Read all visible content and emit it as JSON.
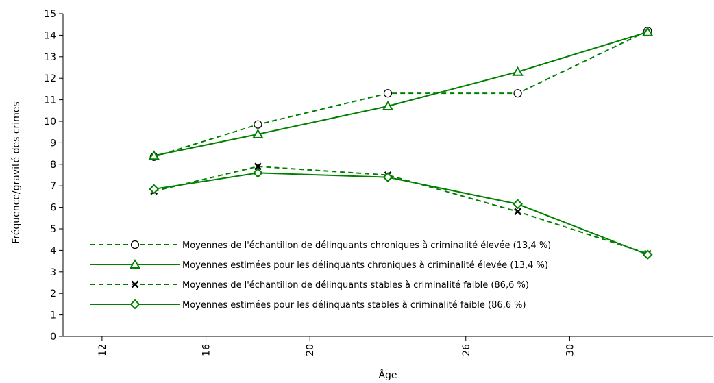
{
  "chart_data": {
    "type": "line",
    "title": "",
    "xlabel": "Âge",
    "ylabel": "Fréquence/gravité des crimes",
    "xlim": [
      10.5,
      35.5
    ],
    "ylim": [
      0,
      15
    ],
    "x_ticks": [
      12,
      16,
      20,
      26,
      30
    ],
    "x_tick_labels": [
      "12",
      "16",
      "20",
      "26",
      "30"
    ],
    "x_positions": [
      14,
      18,
      23,
      28,
      33
    ],
    "y_ticks": [
      0,
      1,
      2,
      3,
      4,
      5,
      6,
      7,
      8,
      9,
      10,
      11,
      12,
      13,
      14,
      15
    ],
    "y_tick_labels": [
      "0",
      "1",
      "2",
      "3",
      "4",
      "5",
      "6",
      "7",
      "8",
      "9",
      "10",
      "11",
      "12",
      "13",
      "14",
      "15"
    ],
    "grid": false,
    "legend_position": "lower-left",
    "color": "#008000",
    "series": [
      {
        "name": "Moyennes de l'échantillon de délinquants chroniques à criminalité élevée (13,4 %)",
        "dash": "dashed",
        "marker": "circle",
        "values": [
          8.35,
          9.85,
          11.3,
          11.3,
          14.2
        ]
      },
      {
        "name": "Moyennes estimées pour les délinquants chroniques à criminalité élevée (13,4 %)",
        "dash": "solid",
        "marker": "triangle",
        "values": [
          8.4,
          9.4,
          10.7,
          12.3,
          14.15
        ]
      },
      {
        "name": "Moyennes de l'échantillon de délinquants stables à criminalité faible (86,6 %)",
        "dash": "dashed",
        "marker": "x",
        "values": [
          6.75,
          7.9,
          7.5,
          5.8,
          3.85
        ]
      },
      {
        "name": "Moyennes estimées pour les délinquants stables à criminalité faible (86,6 %)",
        "dash": "solid",
        "marker": "diamond",
        "values": [
          6.85,
          7.6,
          7.4,
          6.15,
          3.8
        ]
      }
    ]
  }
}
